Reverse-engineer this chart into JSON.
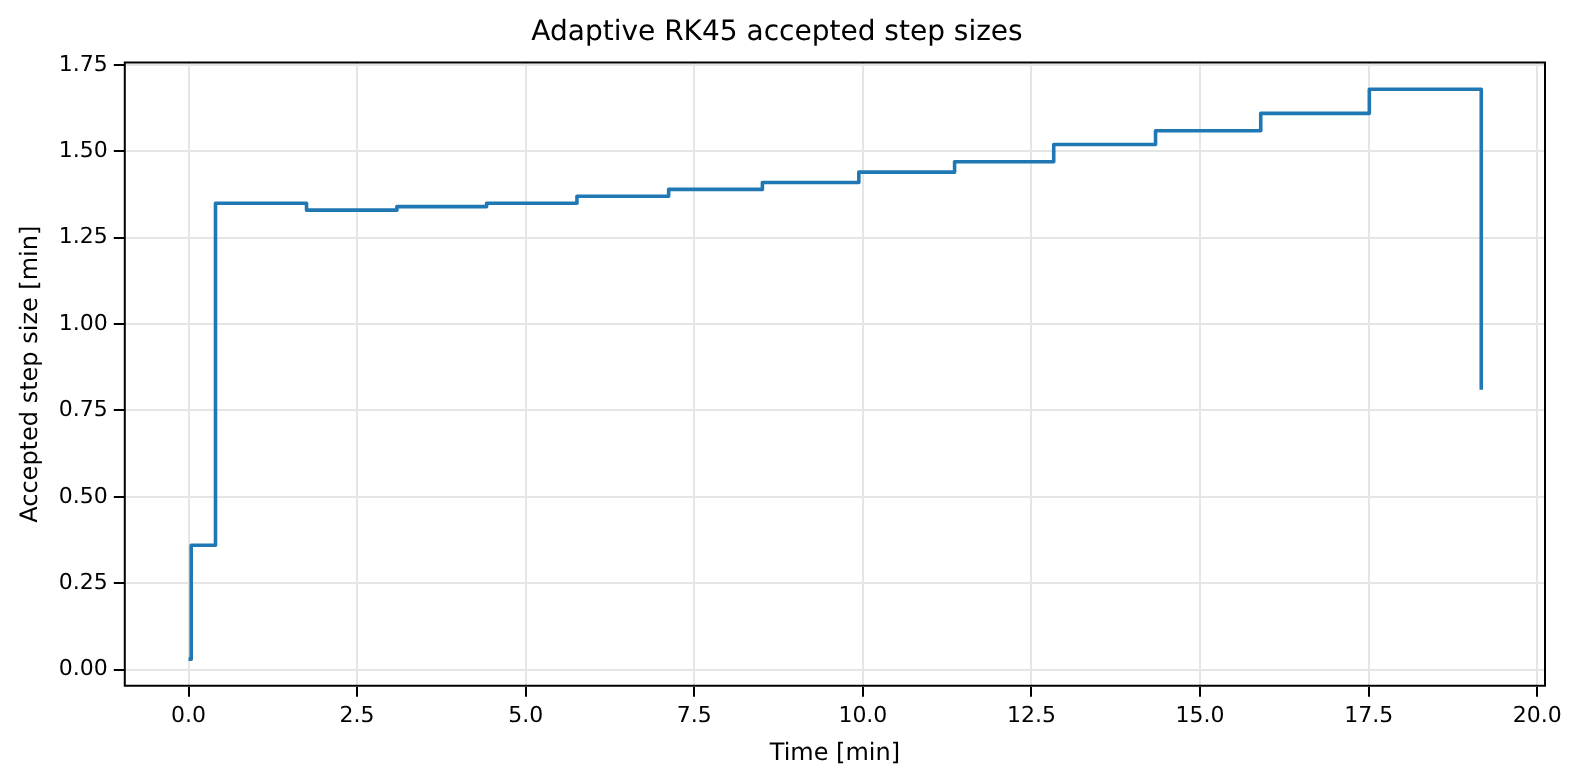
{
  "chart_data": {
    "type": "step",
    "title": "Adaptive RK45 accepted step sizes",
    "xlabel": "Time [min]",
    "ylabel": "Accepted step size [min]",
    "x": [
      0,
      0.04,
      0.4,
      1.75,
      3.09,
      4.42,
      5.76,
      7.12,
      8.51,
      9.94,
      11.36,
      12.83,
      14.34,
      15.9,
      17.51,
      19.17
    ],
    "series": [
      {
        "color": "#1f77b4",
        "values": [
          0.03,
          0.36,
          1.35,
          1.33,
          1.34,
          1.35,
          1.37,
          1.39,
          1.41,
          1.44,
          1.47,
          1.52,
          1.56,
          1.61,
          1.68,
          0.81
        ]
      }
    ],
    "xlim": [
      -0.96,
      20.13
    ],
    "ylim": [
      -0.05,
      1.76
    ],
    "xticks": [
      {
        "value": 0,
        "label": "0.0"
      },
      {
        "value": 2.5,
        "label": "2.5"
      },
      {
        "value": 5,
        "label": "5.0"
      },
      {
        "value": 7.5,
        "label": "7.5"
      },
      {
        "value": 10,
        "label": "10.0"
      },
      {
        "value": 12.5,
        "label": "12.5"
      },
      {
        "value": 15,
        "label": "15.0"
      },
      {
        "value": 17.5,
        "label": "17.5"
      },
      {
        "value": 20,
        "label": "20.0"
      }
    ],
    "yticks": [
      {
        "value": 0,
        "label": "0.00"
      },
      {
        "value": 0.25,
        "label": "0.25"
      },
      {
        "value": 0.5,
        "label": "0.50"
      },
      {
        "value": 0.75,
        "label": "0.75"
      },
      {
        "value": 1,
        "label": "1.00"
      },
      {
        "value": 1.25,
        "label": "1.25"
      },
      {
        "value": 1.5,
        "label": "1.50"
      },
      {
        "value": 1.75,
        "label": "1.75"
      }
    ],
    "grid": true,
    "legend": false
  }
}
